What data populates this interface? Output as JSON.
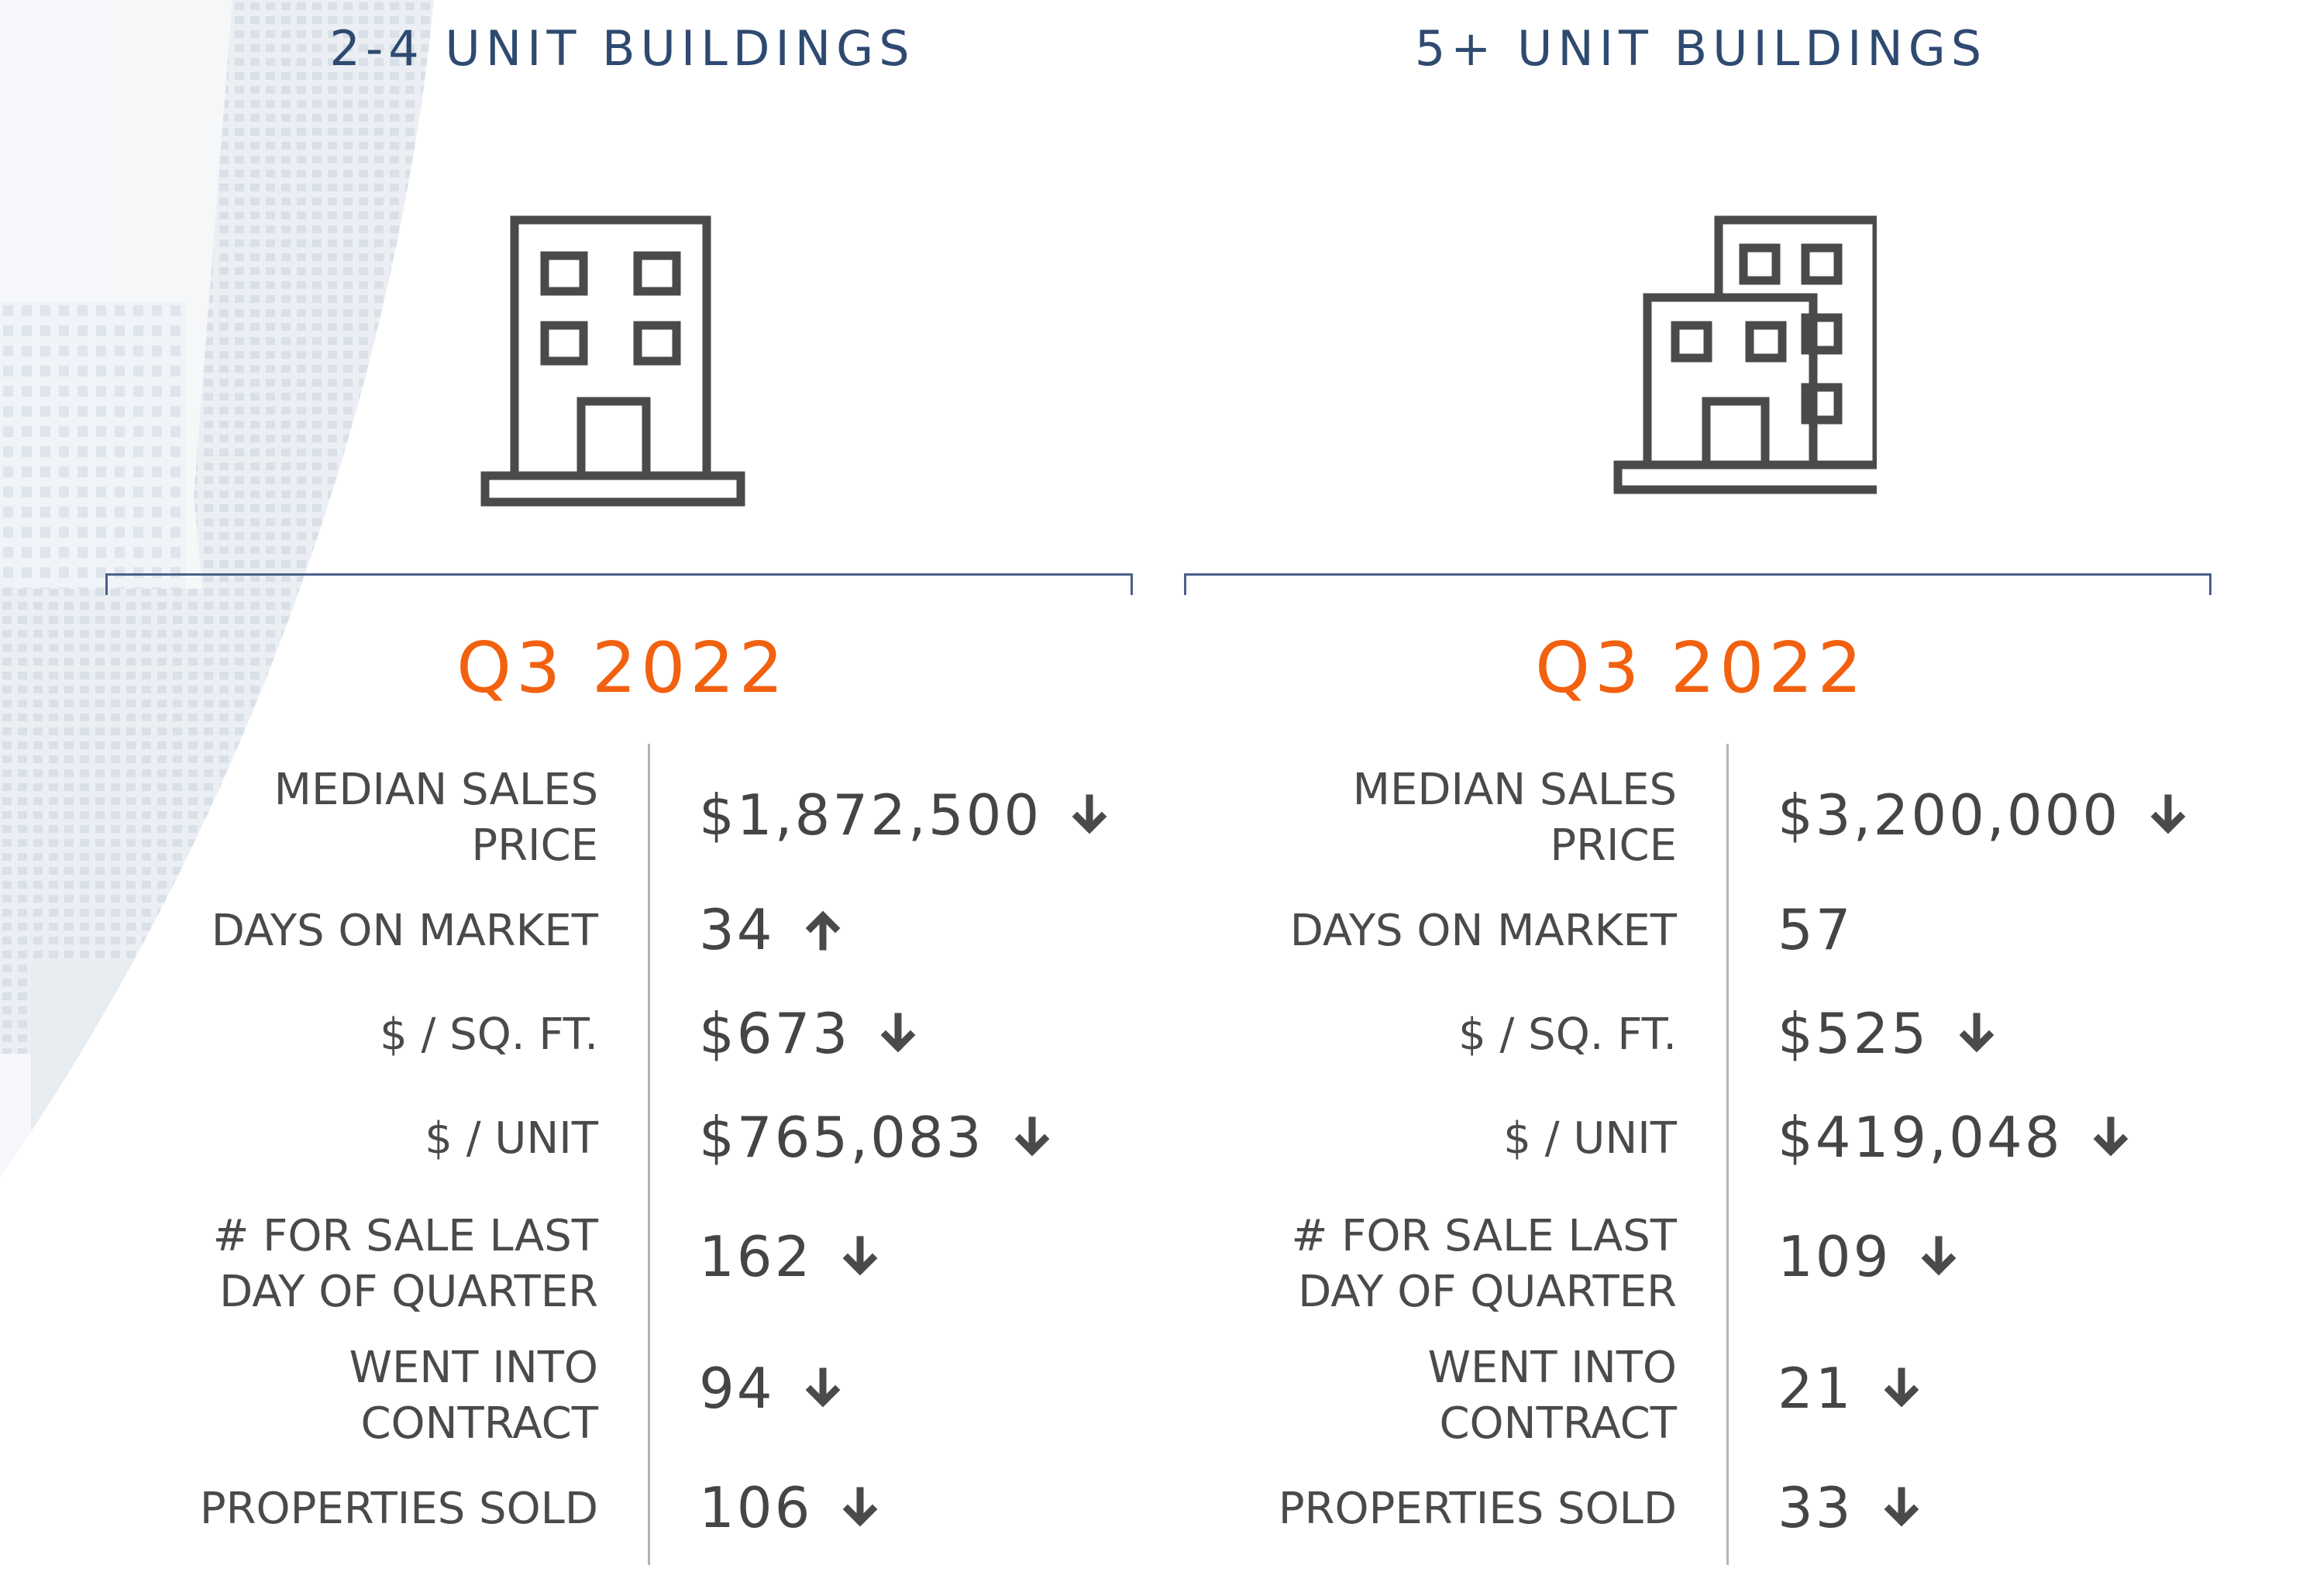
{
  "colors": {
    "title": "#2e4a70",
    "quarter": "#f2610f",
    "text": "#4a4a4a",
    "icon": "#4a4a4a",
    "divider": "#b4b4b4"
  },
  "columns": [
    {
      "title": "2-4 UNIT BUILDINGS",
      "icon": "small-building-icon",
      "quarter": "Q3 2022",
      "stats": [
        {
          "label_lines": [
            "MEDIAN SALES",
            "PRICE"
          ],
          "value": "$1,872,500",
          "trend": "down"
        },
        {
          "label_lines": [
            "DAYS ON MARKET"
          ],
          "value": "34",
          "trend": "up"
        },
        {
          "label_lines": [
            "$ / SQ. FT."
          ],
          "value": "$673",
          "trend": "down"
        },
        {
          "label_lines": [
            "$ / UNIT"
          ],
          "value": "$765,083",
          "trend": "down"
        },
        {
          "label_lines": [
            "# FOR SALE LAST",
            "DAY OF QUARTER"
          ],
          "value": "162",
          "trend": "down"
        },
        {
          "label_lines": [
            "WENT INTO",
            "CONTRACT"
          ],
          "value": "94",
          "trend": "down"
        },
        {
          "label_lines": [
            "PROPERTIES SOLD"
          ],
          "value": "106",
          "trend": "down"
        }
      ]
    },
    {
      "title": "5+ UNIT BUILDINGS",
      "icon": "large-buildings-icon",
      "quarter": "Q3 2022",
      "stats": [
        {
          "label_lines": [
            "MEDIAN SALES",
            "PRICE"
          ],
          "value": "$3,200,000",
          "trend": "down"
        },
        {
          "label_lines": [
            "DAYS ON MARKET"
          ],
          "value": "57",
          "trend": "none"
        },
        {
          "label_lines": [
            "$ / SQ. FT."
          ],
          "value": "$525",
          "trend": "down"
        },
        {
          "label_lines": [
            "$ / UNIT"
          ],
          "value": "$419,048",
          "trend": "down"
        },
        {
          "label_lines": [
            "# FOR SALE LAST",
            "DAY OF QUARTER"
          ],
          "value": "109",
          "trend": "down"
        },
        {
          "label_lines": [
            "WENT INTO",
            "CONTRACT"
          ],
          "value": "21",
          "trend": "down"
        },
        {
          "label_lines": [
            "PROPERTIES SOLD"
          ],
          "value": "33",
          "trend": "down"
        }
      ]
    }
  ]
}
